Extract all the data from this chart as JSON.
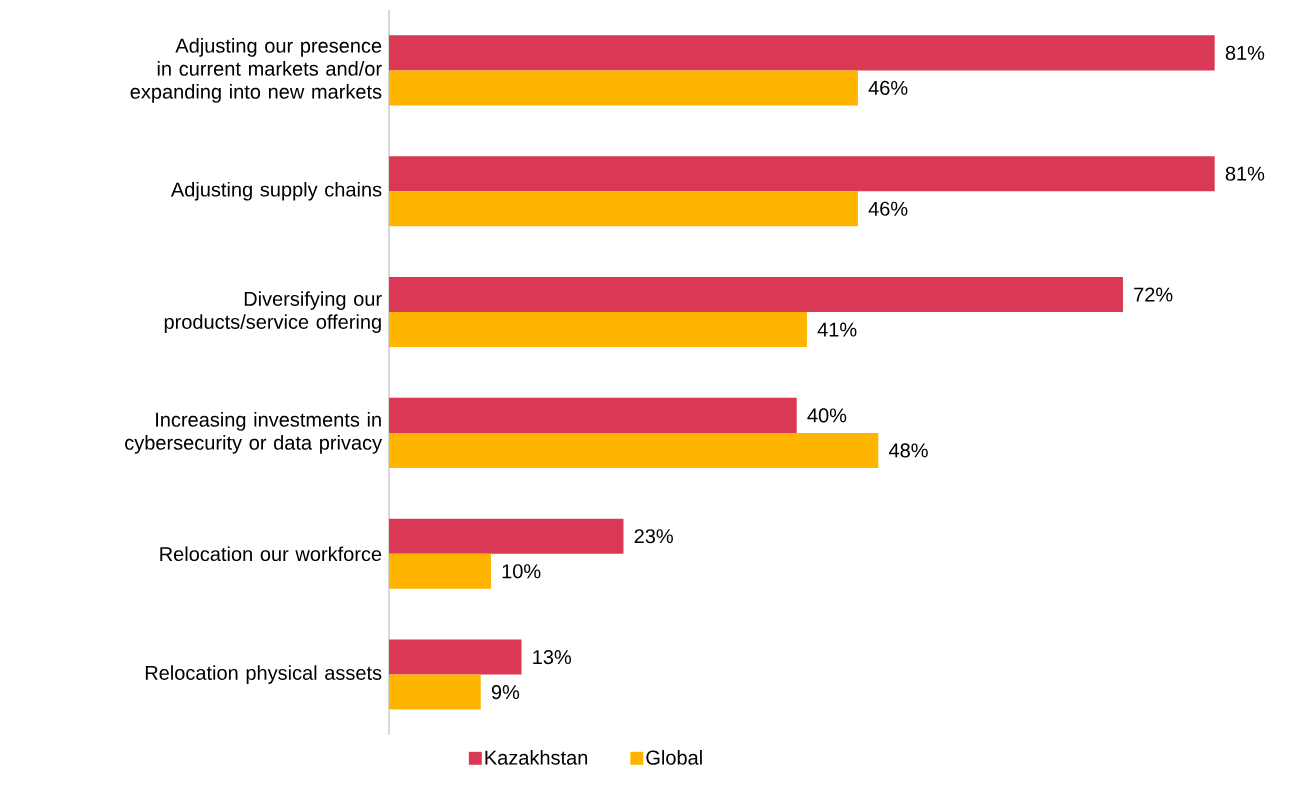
{
  "chart_data": {
    "type": "bar",
    "orientation": "horizontal",
    "categories": [
      "Adjusting our presence in current markets and/or expanding into new markets",
      "Adjusting supply chains",
      "Diversifying our products/service offering",
      "Increasing investments in cybersecurity or data privacy",
      "Relocation our workforce",
      "Relocation physical assets"
    ],
    "series": [
      {
        "name": "Kazakhstan",
        "color": "#d93954",
        "values": [
          81,
          81,
          72,
          40,
          23,
          13
        ],
        "value_labels": [
          "81%",
          "81%",
          "72%",
          "40%",
          "23%",
          "13%"
        ]
      },
      {
        "name": "Global",
        "color": "#ffb400",
        "values": [
          46,
          46,
          41,
          48,
          10,
          9
        ],
        "value_labels": [
          "46%",
          "46%",
          "41%",
          "48%",
          "10%",
          "9%"
        ]
      }
    ],
    "legend": "bottom"
  }
}
